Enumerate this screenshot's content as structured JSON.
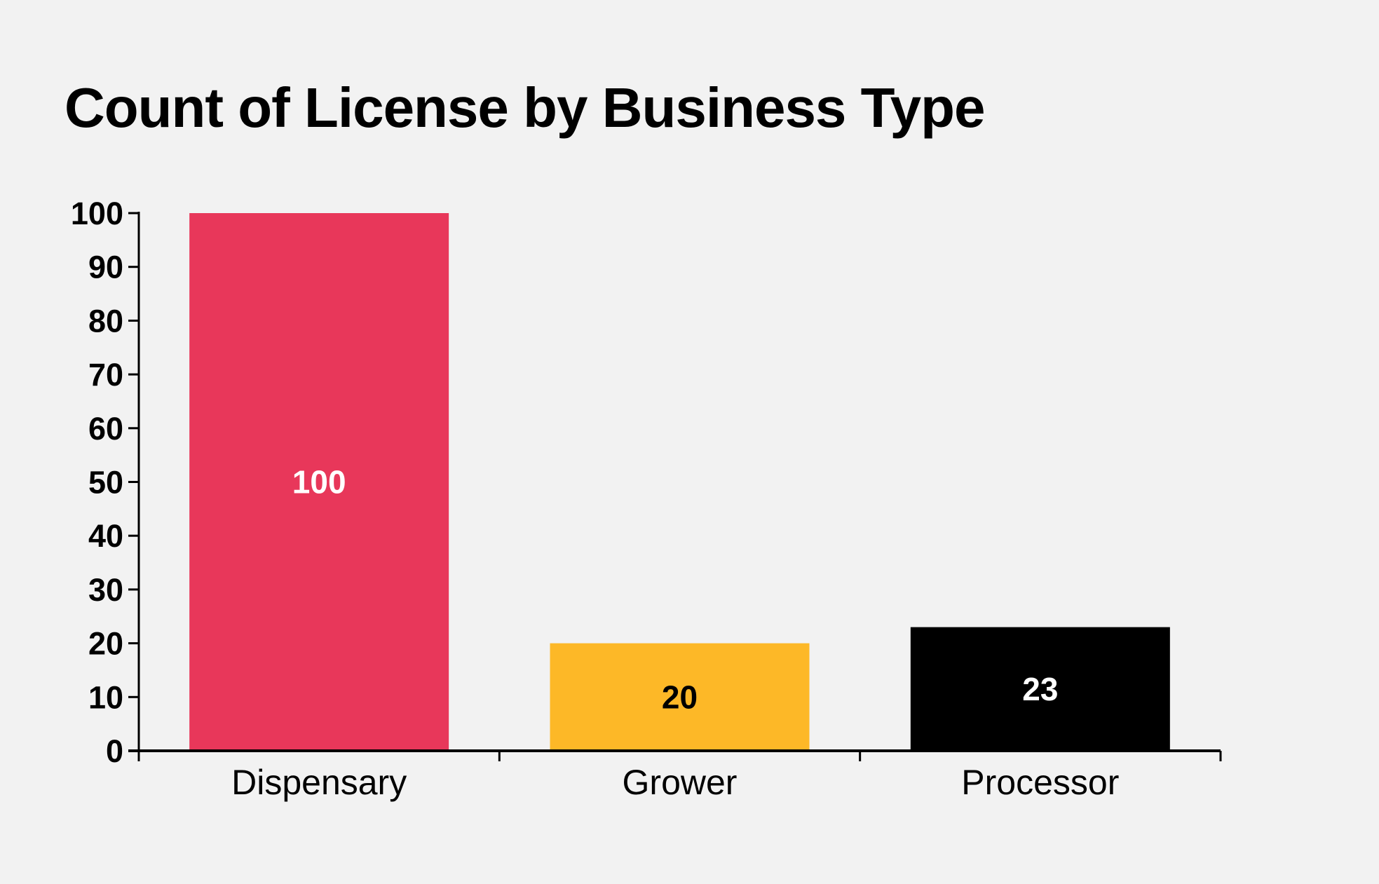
{
  "chart_data": {
    "type": "bar",
    "title": "Count of License by Business Type",
    "xlabel": "",
    "ylabel": "",
    "categories": [
      "Dispensary",
      "Grower",
      "Processor"
    ],
    "values": [
      100,
      20,
      23
    ],
    "colors": [
      "#e8375a",
      "#fdb827",
      "#000000"
    ],
    "label_colors": [
      "#ffffff",
      "#000000",
      "#ffffff"
    ],
    "ylim": [
      0,
      100
    ],
    "yticks": [
      0,
      10,
      20,
      30,
      40,
      50,
      60,
      70,
      80,
      90,
      100
    ],
    "grid": false
  }
}
